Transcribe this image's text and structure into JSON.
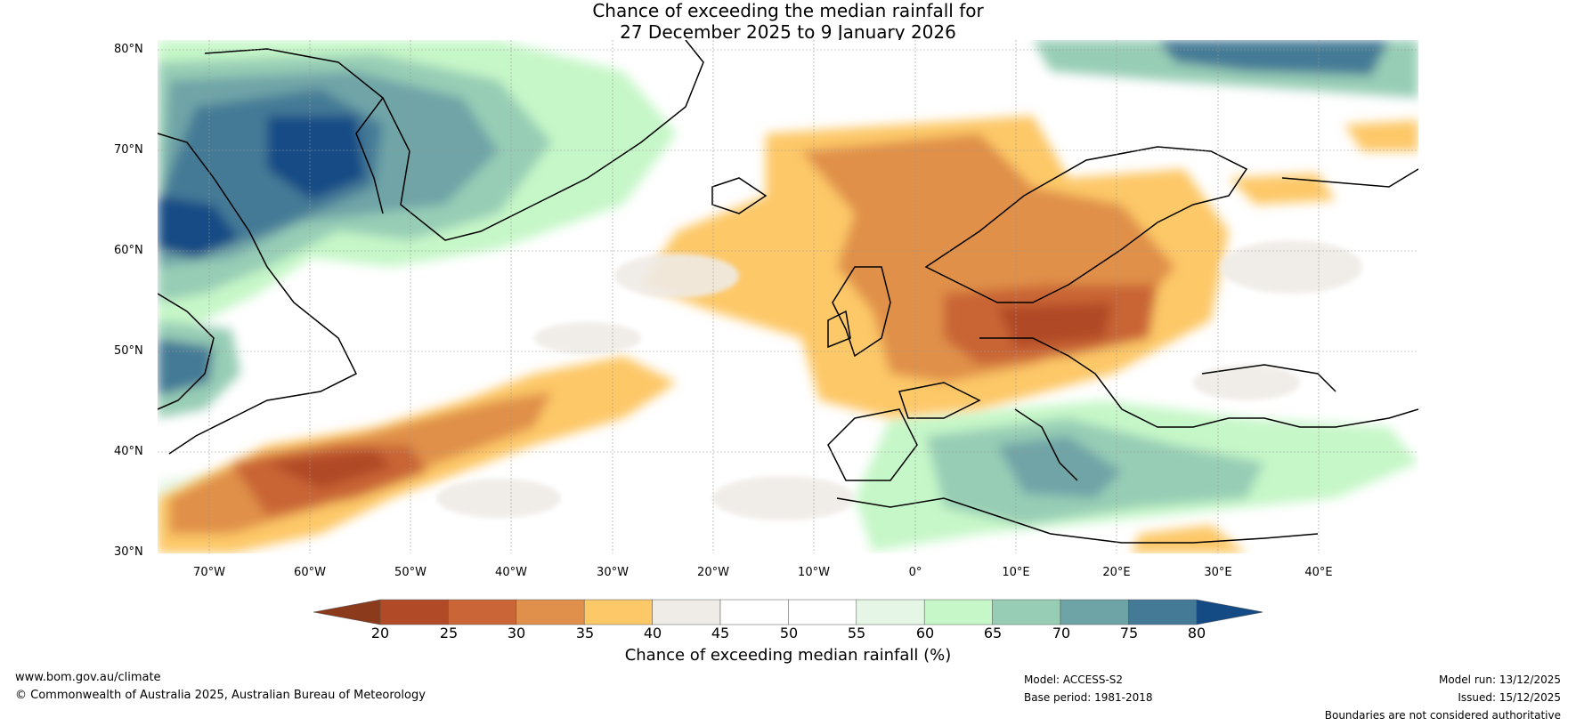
{
  "title": {
    "line1": "Chance of exceeding the median rainfall for",
    "line2": "27 December 2025 to 9 January 2026"
  },
  "lat_labels": [
    "80°N",
    "70°N",
    "60°N",
    "50°N",
    "40°N",
    "30°N"
  ],
  "lon_labels": [
    "70°W",
    "60°W",
    "50°W",
    "40°W",
    "30°W",
    "20°W",
    "10°W",
    "0°",
    "10°E",
    "20°E",
    "30°E",
    "40°E"
  ],
  "colorbar": {
    "ticks": [
      "20",
      "25",
      "30",
      "35",
      "40",
      "45",
      "50",
      "55",
      "60",
      "65",
      "70",
      "75",
      "80"
    ],
    "colors": [
      "#8c3a1c",
      "#b04a27",
      "#c96536",
      "#e0904a",
      "#fdc868",
      "#efebe6",
      "#ffffff",
      "#ffffff",
      "#e6f6e6",
      "#c6f7c8",
      "#97cdb5",
      "#6fa4a7",
      "#447a96",
      "#144b85"
    ],
    "title": "Chance of exceeding median rainfall (%)"
  },
  "footer": {
    "website": "www.bom.gov.au/climate",
    "copyright": "© Commonwealth of Australia 2025, Australian Bureau of Meteorology",
    "model": "Model: ACCESS-S2",
    "base_period": "Base period: 1981-2018",
    "model_run": "Model run: 13/12/2025",
    "issued": "Issued: 15/12/2025",
    "disclaimer": "Boundaries are not considered authoritative"
  }
}
